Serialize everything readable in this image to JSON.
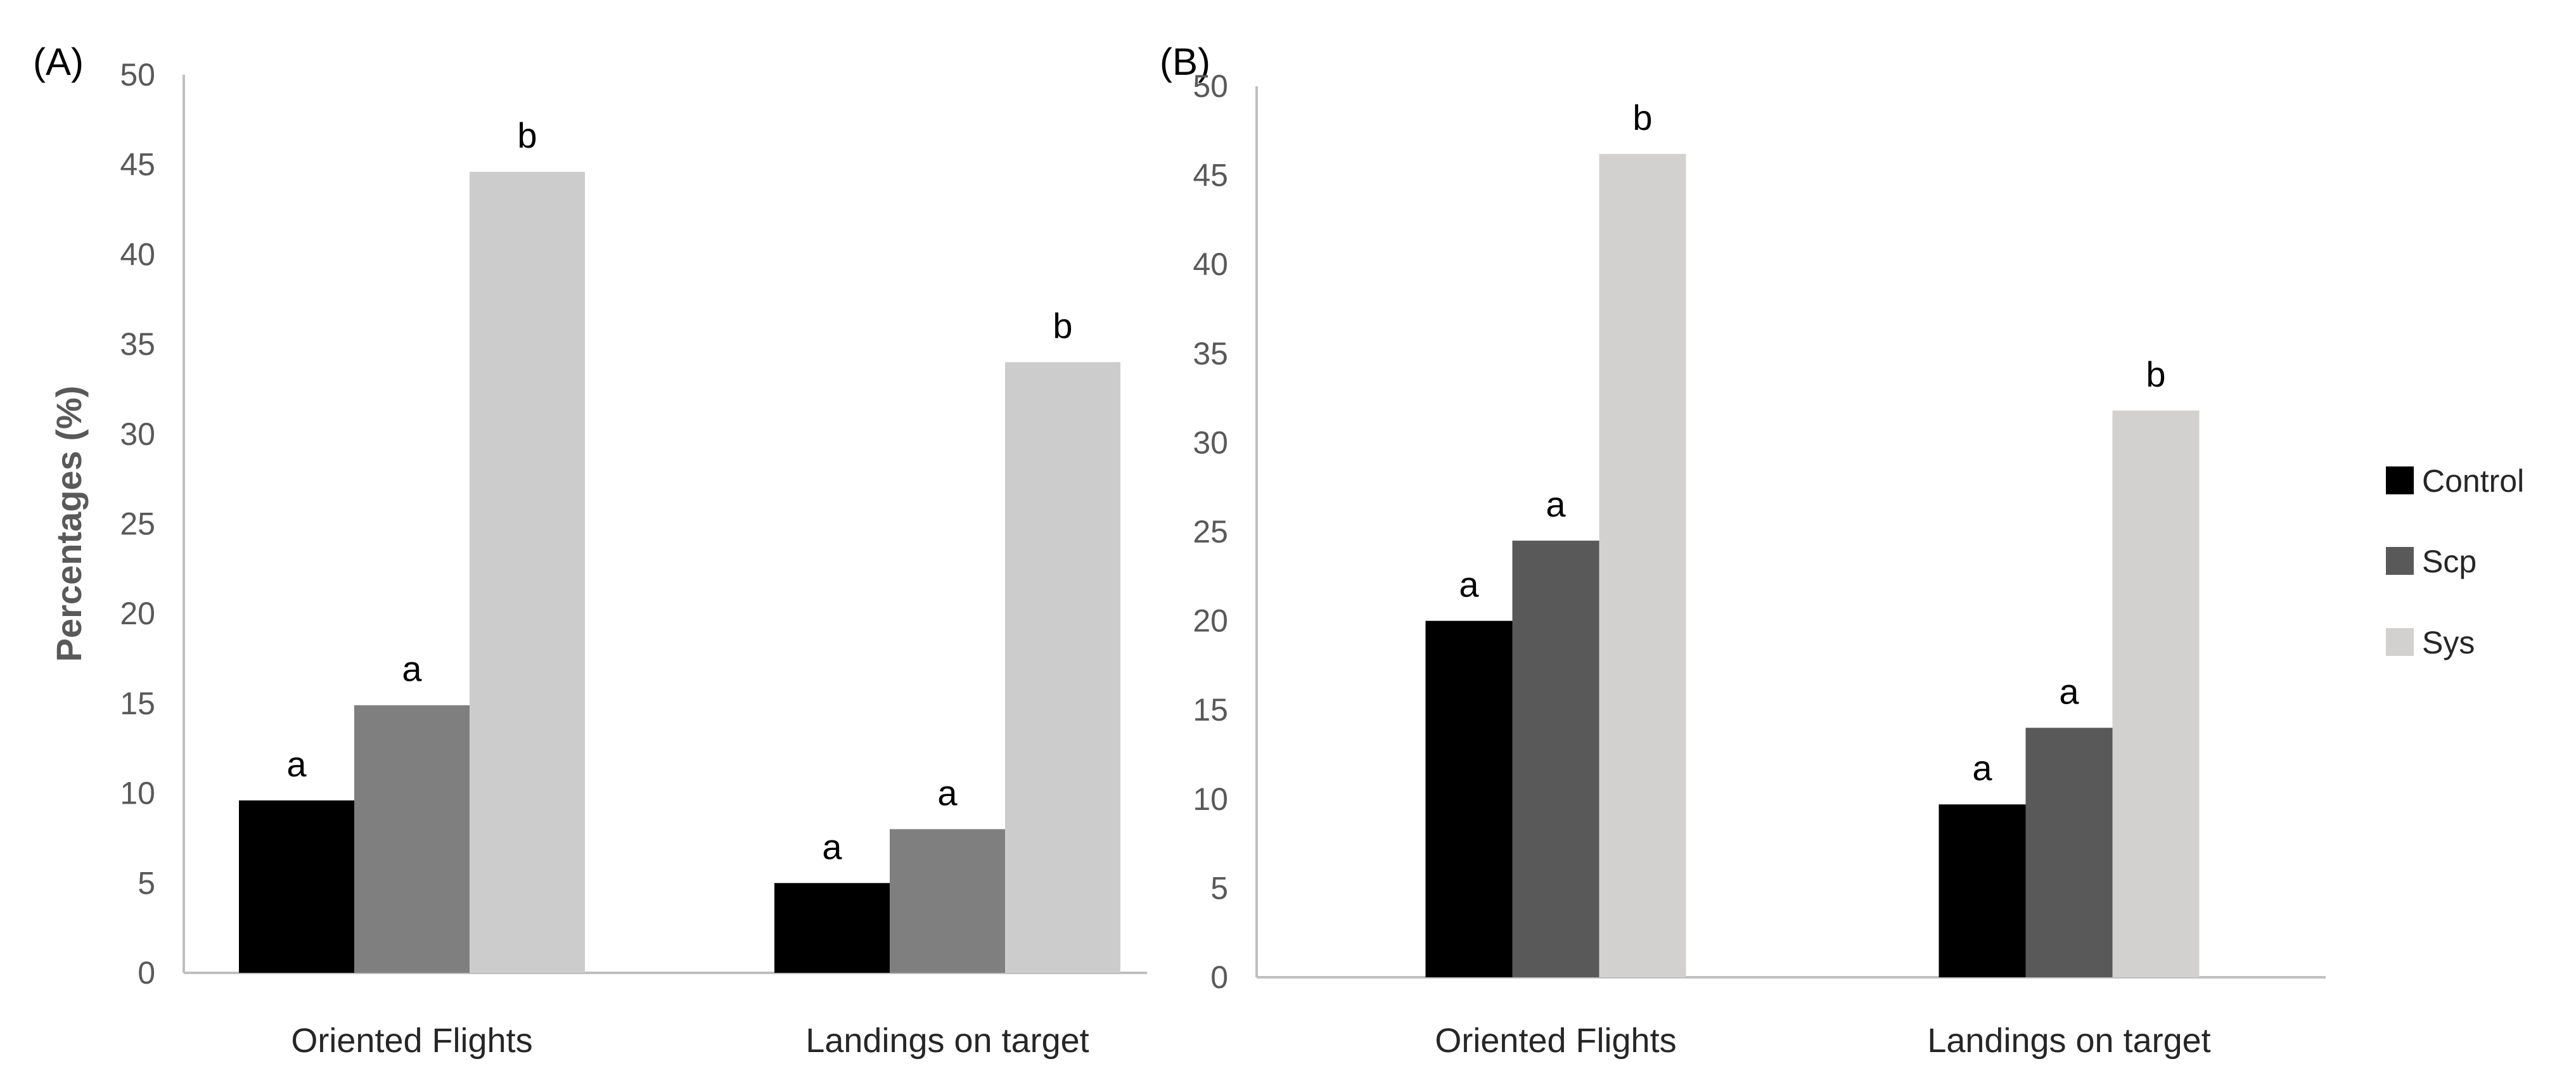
{
  "colors": {
    "Control": "#000000",
    "Scp_A": "#7f7f7f",
    "Sys_A": "#cccccc",
    "Scp_B": "#595959",
    "Sys_B": "#d3d0d0"
  },
  "legend": [
    "Control",
    "Scp",
    "Sys"
  ],
  "chart_data": [
    {
      "type": "bar",
      "panel_label": "(A)",
      "ylabel": "Percentages (%)",
      "ylim": [
        0,
        50
      ],
      "yticks": [
        0,
        5,
        10,
        15,
        20,
        25,
        30,
        35,
        40,
        45,
        50
      ],
      "categories": [
        "Oriented Flights",
        "Landings on target"
      ],
      "series": [
        {
          "name": "Control",
          "values": [
            9.6,
            5.0
          ],
          "letters": [
            "a",
            "a"
          ]
        },
        {
          "name": "Scp",
          "values": [
            14.9,
            8.0
          ],
          "letters": [
            "a",
            "a"
          ]
        },
        {
          "name": "Sys",
          "values": [
            44.6,
            34.0
          ],
          "letters": [
            "b",
            "b"
          ]
        }
      ],
      "grid": false
    },
    {
      "type": "bar",
      "panel_label": "(B)",
      "ylabel": "",
      "ylim": [
        0,
        50
      ],
      "yticks": [
        0,
        5,
        10,
        15,
        20,
        25,
        30,
        35,
        40,
        45,
        50
      ],
      "categories": [
        "Oriented Flights",
        "Landings on target"
      ],
      "series": [
        {
          "name": "Control",
          "values": [
            20.0,
            9.7
          ],
          "letters": [
            "a",
            "a"
          ]
        },
        {
          "name": "Scp",
          "values": [
            24.5,
            14.0
          ],
          "letters": [
            "a",
            "a"
          ]
        },
        {
          "name": "Sys",
          "values": [
            46.2,
            31.8
          ],
          "letters": [
            "b",
            "b"
          ]
        }
      ],
      "legend_position": "right",
      "grid": false
    }
  ]
}
